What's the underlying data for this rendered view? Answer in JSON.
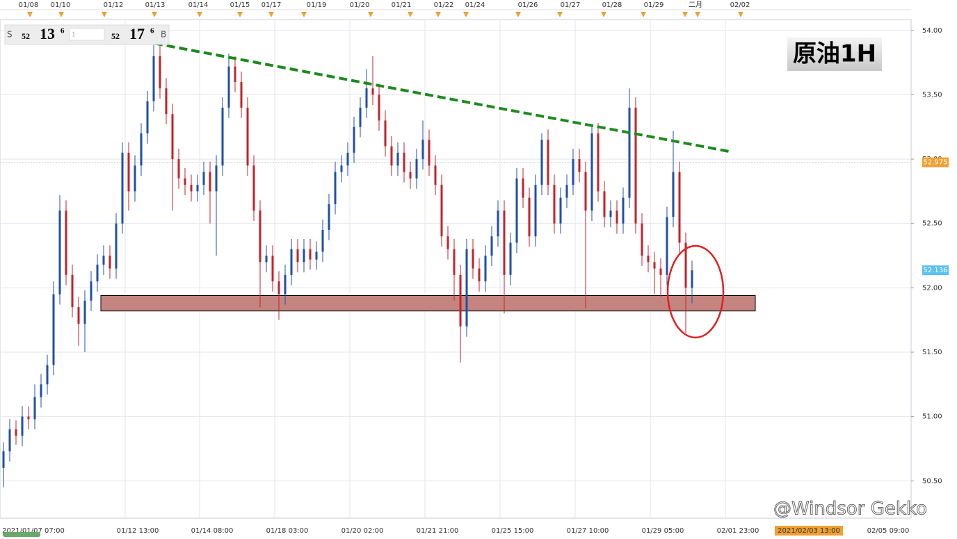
{
  "chart_data": {
    "type": "candlestick",
    "title": "原油1H",
    "watermark": "@Windsor Gekko",
    "quote_panel": {
      "sell": "S",
      "bid_big": "52",
      "bid_main": "13",
      "bid_sup": "6",
      "lot": "1",
      "ask_big": "52",
      "ask_main": "17",
      "ask_sup": "6",
      "buy": "B"
    },
    "top_dates": [
      "01/08",
      "01/10",
      "01/12",
      "01/13",
      "01/14",
      "01/15",
      "01/17",
      "01/19",
      "01/20",
      "01/21",
      "01/22",
      "01/24",
      "01/26",
      "01/27",
      "01/28",
      "01/29",
      "二月",
      "02/02"
    ],
    "x_labels": [
      "2021/01/07 07:00",
      "01/12 13:00",
      "01/14 08:00",
      "01/18 03:00",
      "01/20 02:00",
      "01/21 21:00",
      "01/25 15:00",
      "01/27 10:00",
      "01/29 05:00",
      "02/01 23:00",
      "2021/02/03 13:00",
      "02/05 09:00"
    ],
    "ylim": [
      50.21,
      54.08
    ],
    "yticks": [
      {
        "value": 50.5,
        "label": "50.50"
      },
      {
        "value": 51,
        "label": "51.00"
      },
      {
        "value": 51.5,
        "label": "51.50"
      },
      {
        "value": 52,
        "label": "52.00"
      },
      {
        "value": 52.5,
        "label": "52.50"
      },
      {
        "value": 53,
        "label": "53.00"
      },
      {
        "value": 53.5,
        "label": "53.50"
      },
      {
        "value": 54,
        "label": "54.00"
      }
    ],
    "up_color": "#1f4fa8",
    "down_color": "#c3222a",
    "ohlc": [
      [
        50.6,
        50.8,
        50.45,
        50.73
      ],
      [
        50.73,
        50.98,
        50.65,
        50.9
      ],
      [
        50.9,
        50.97,
        50.78,
        50.85
      ],
      [
        50.85,
        51.08,
        50.77,
        51
      ],
      [
        51,
        51.08,
        50.9,
        50.98
      ],
      [
        50.98,
        51.25,
        50.9,
        51.15
      ],
      [
        51.15,
        51.33,
        51.07,
        51.25
      ],
      [
        51.25,
        51.48,
        51.17,
        51.4
      ],
      [
        51.4,
        52.05,
        51.32,
        51.95
      ],
      [
        51.95,
        52.72,
        51.87,
        52.6
      ],
      [
        52.6,
        52.68,
        52.02,
        52.1
      ],
      [
        52.1,
        52.18,
        51.77,
        51.85
      ],
      [
        51.85,
        51.93,
        51.55,
        51.72
      ],
      [
        51.72,
        51.98,
        51.5,
        51.9
      ],
      [
        51.9,
        52.13,
        51.82,
        52.05
      ],
      [
        52.05,
        52.26,
        51.97,
        52.18
      ],
      [
        52.18,
        52.33,
        52.1,
        52.25
      ],
      [
        52.25,
        52.33,
        52.07,
        52.15
      ],
      [
        52.15,
        52.58,
        52.07,
        52.5
      ],
      [
        52.5,
        53.13,
        52.42,
        53.05
      ],
      [
        53.05,
        53.13,
        52.6,
        52.75
      ],
      [
        52.75,
        53.03,
        52.67,
        52.95
      ],
      [
        52.95,
        53.28,
        52.87,
        53.2
      ],
      [
        53.2,
        53.53,
        53.12,
        53.45
      ],
      [
        53.45,
        53.9,
        53.37,
        53.8
      ],
      [
        53.8,
        53.88,
        53.47,
        53.55
      ],
      [
        53.55,
        53.63,
        53.27,
        53.35
      ],
      [
        53.35,
        53.43,
        52.6,
        53
      ],
      [
        53,
        53.08,
        52.77,
        52.85
      ],
      [
        52.85,
        52.93,
        52.72,
        52.8
      ],
      [
        52.8,
        52.88,
        52.67,
        52.75
      ],
      [
        52.75,
        52.88,
        52.67,
        52.8
      ],
      [
        52.8,
        52.98,
        52.72,
        52.9
      ],
      [
        52.9,
        52.98,
        52.5,
        52.75
      ],
      [
        52.75,
        53.03,
        52.25,
        52.95
      ],
      [
        52.95,
        53.48,
        52.87,
        53.4
      ],
      [
        53.4,
        53.82,
        53.32,
        53.72
      ],
      [
        53.72,
        53.8,
        53.52,
        53.6
      ],
      [
        53.6,
        53.68,
        53.32,
        53.4
      ],
      [
        53.4,
        53.48,
        52.87,
        52.95
      ],
      [
        52.95,
        53.03,
        52.52,
        52.6
      ],
      [
        52.6,
        52.68,
        51.85,
        52.2
      ],
      [
        52.2,
        52.33,
        52.12,
        52.25
      ],
      [
        52.25,
        52.33,
        51.97,
        52.05
      ],
      [
        52.05,
        52.13,
        51.75,
        51.95
      ],
      [
        51.95,
        52.18,
        51.87,
        52.1
      ],
      [
        52.1,
        52.38,
        52.02,
        52.3
      ],
      [
        52.3,
        52.38,
        52.12,
        52.2
      ],
      [
        52.2,
        52.38,
        52.12,
        52.3
      ],
      [
        52.3,
        52.38,
        52.14,
        52.22
      ],
      [
        52.22,
        52.36,
        52.14,
        52.28
      ],
      [
        52.28,
        52.53,
        52.2,
        52.45
      ],
      [
        52.45,
        52.73,
        52.37,
        52.65
      ],
      [
        52.65,
        52.98,
        52.57,
        52.9
      ],
      [
        52.9,
        53.03,
        52.82,
        52.95
      ],
      [
        52.95,
        53.13,
        52.87,
        53.05
      ],
      [
        53.05,
        53.33,
        52.97,
        53.25
      ],
      [
        53.25,
        53.48,
        53.17,
        53.4
      ],
      [
        53.4,
        53.7,
        53.32,
        53.55
      ],
      [
        53.55,
        53.8,
        53.42,
        53.5
      ],
      [
        53.5,
        53.58,
        53.22,
        53.3
      ],
      [
        53.3,
        53.38,
        53.02,
        53.1
      ],
      [
        53.1,
        53.18,
        52.87,
        52.95
      ],
      [
        52.95,
        53.13,
        52.87,
        53.05
      ],
      [
        53.05,
        53.13,
        52.82,
        52.9
      ],
      [
        52.9,
        52.98,
        52.77,
        52.85
      ],
      [
        52.85,
        53.08,
        52.77,
        53
      ],
      [
        53,
        53.3,
        52.92,
        53.15
      ],
      [
        53.15,
        53.23,
        52.87,
        52.95
      ],
      [
        52.95,
        53.03,
        52.72,
        52.8
      ],
      [
        52.8,
        52.88,
        52.32,
        52.4
      ],
      [
        52.4,
        52.48,
        52.22,
        52.3
      ],
      [
        52.3,
        52.38,
        51.9,
        52.1
      ],
      [
        52.1,
        52.18,
        51.42,
        51.7
      ],
      [
        51.7,
        52.38,
        51.62,
        52.3
      ],
      [
        52.3,
        52.38,
        52.07,
        52.15
      ],
      [
        52.15,
        52.23,
        51.97,
        52.05
      ],
      [
        52.05,
        52.33,
        51.97,
        52.25
      ],
      [
        52.25,
        52.48,
        52.17,
        52.4
      ],
      [
        52.4,
        52.68,
        52.32,
        52.6
      ],
      [
        52.6,
        52.68,
        51.8,
        52.1
      ],
      [
        52.1,
        52.43,
        52.02,
        52.35
      ],
      [
        52.35,
        52.93,
        52.27,
        52.85
      ],
      [
        52.85,
        52.93,
        52.62,
        52.7
      ],
      [
        52.7,
        52.78,
        52.32,
        52.4
      ],
      [
        52.4,
        52.88,
        52.32,
        52.8
      ],
      [
        52.8,
        53.2,
        52.72,
        53.15
      ],
      [
        53.15,
        53.23,
        52.72,
        52.8
      ],
      [
        52.8,
        52.88,
        52.42,
        52.5
      ],
      [
        52.5,
        52.78,
        52.42,
        52.7
      ],
      [
        52.7,
        52.88,
        52.62,
        52.8
      ],
      [
        52.8,
        53.08,
        52.72,
        53
      ],
      [
        53,
        53.08,
        52.82,
        52.9
      ],
      [
        52.9,
        52.98,
        51.84,
        52.6
      ],
      [
        52.6,
        53.25,
        52.52,
        53.2
      ],
      [
        53.2,
        53.28,
        52.67,
        52.75
      ],
      [
        52.75,
        52.83,
        52.47,
        52.55
      ],
      [
        52.55,
        52.68,
        52.47,
        52.6
      ],
      [
        52.6,
        52.68,
        52.42,
        52.5
      ],
      [
        52.5,
        52.78,
        52.42,
        52.7
      ],
      [
        52.7,
        53.55,
        52.62,
        53.4
      ],
      [
        53.4,
        53.48,
        52.42,
        52.5
      ],
      [
        52.5,
        52.58,
        52.17,
        52.25
      ],
      [
        52.25,
        52.33,
        52.12,
        52.2
      ],
      [
        52.2,
        52.28,
        51.95,
        52.15
      ],
      [
        52.15,
        52.23,
        51.93,
        52.1
      ],
      [
        52.1,
        52.63,
        52.02,
        52.55
      ],
      [
        52.55,
        53.22,
        52.47,
        52.9
      ],
      [
        52.9,
        52.98,
        52.27,
        52.35
      ],
      [
        52.35,
        52.43,
        51.65,
        52
      ],
      [
        52,
        52.21,
        51.88,
        52.136
      ]
    ],
    "trendline": {
      "start": 53.9,
      "end": 53.06,
      "color": "#1e8a1e"
    },
    "support_zone": {
      "low": 51.82,
      "high": 51.94,
      "color": "#c48580"
    },
    "price_labels": [
      {
        "value": 52.975,
        "color": "#f0a030"
      },
      {
        "value": 52.136,
        "color": "#5bc0f0"
      }
    ]
  }
}
